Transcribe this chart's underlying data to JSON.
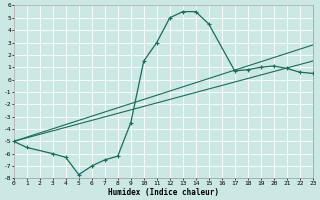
{
  "xlabel": "Humidex (Indice chaleur)",
  "bg_color": "#cce8e5",
  "line_color": "#1a6b5a",
  "grid_color": "#b8d8d5",
  "xlim": [
    0,
    23
  ],
  "ylim": [
    -8,
    6
  ],
  "xticks": [
    0,
    1,
    2,
    3,
    4,
    5,
    6,
    7,
    8,
    9,
    10,
    11,
    12,
    13,
    14,
    15,
    16,
    17,
    18,
    19,
    20,
    21,
    22,
    23
  ],
  "yticks": [
    -8,
    -7,
    -6,
    -5,
    -4,
    -3,
    -2,
    -1,
    0,
    1,
    2,
    3,
    4,
    5,
    6
  ],
  "ytick_labels": [
    "8",
    "7",
    "6",
    "5",
    "4",
    "3",
    "2",
    "1",
    "0",
    "1",
    "2",
    "3",
    "4",
    "5",
    "6"
  ],
  "curve_main_x": [
    0,
    1,
    3,
    4,
    5,
    6,
    7,
    8,
    9,
    10,
    11,
    12,
    13,
    14,
    15,
    17,
    18,
    19,
    20,
    21,
    22,
    23
  ],
  "curve_main_y": [
    -5.0,
    -5.5,
    -6.0,
    -6.3,
    -7.7,
    -7.0,
    -6.5,
    -6.2,
    -3.5,
    1.5,
    3.0,
    5.0,
    5.5,
    5.5,
    4.5,
    0.7,
    0.8,
    1.0,
    1.1,
    0.9,
    0.6,
    0.5
  ],
  "line1_x": [
    0,
    23
  ],
  "line1_y": [
    -5.0,
    1.5
  ],
  "line2_x": [
    0,
    23
  ],
  "line2_y": [
    -5.0,
    2.8
  ]
}
